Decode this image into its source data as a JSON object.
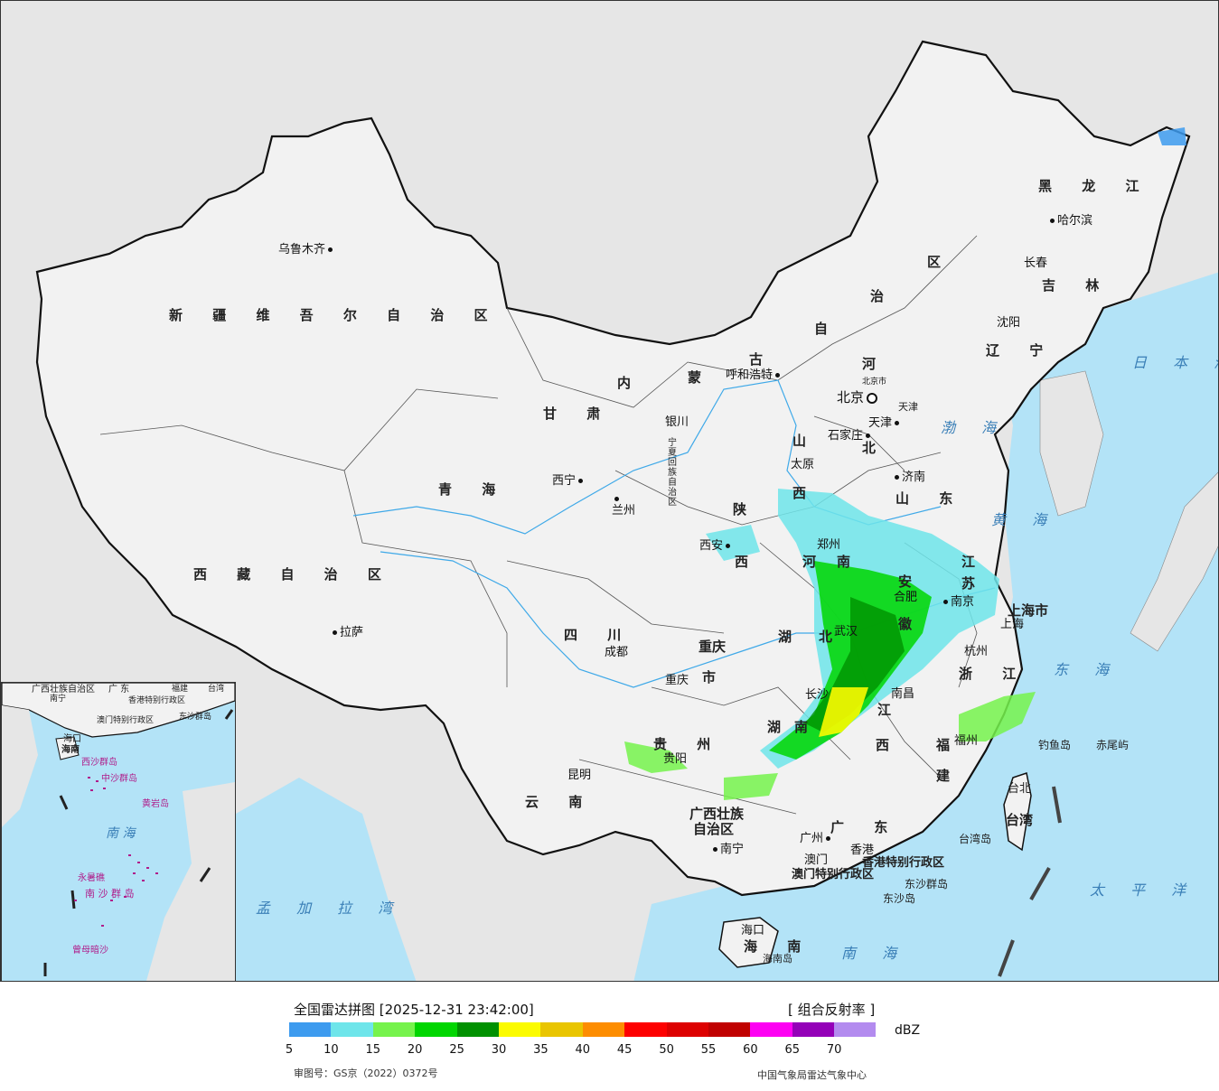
{
  "colors": {
    "ocean": "#b3e3f7",
    "land_china": "#f2f2f2",
    "land_other": "#e6e6e6",
    "border": "#111111",
    "river": "#3fa9e8",
    "sea_label": "#3a7fb7",
    "islands": "#b01c8a"
  },
  "map": {
    "provinces": [
      "新 疆 维 吾 尔 自 治 区",
      "西 藏 自 治 区",
      "青 海",
      "甘 肃",
      "四 川",
      "云 南",
      "黑 龙 江",
      "吉 林",
      "辽 宁",
      "内",
      "蒙",
      "古",
      "自",
      "治",
      "区",
      "河",
      "北",
      "山",
      "西",
      "山 东",
      "河",
      "南",
      "陕",
      "西",
      "湖",
      "北",
      "湖",
      "南",
      "江",
      "西",
      "安",
      "徽",
      "江",
      "苏",
      "浙 江",
      "福",
      "建",
      "贵 州",
      "广 东",
      "海 南",
      "广西壮族",
      "自治区",
      "重庆",
      "市",
      "宁夏回族自治区",
      "台北",
      "台湾",
      "上海市",
      "天津"
    ],
    "cities": [
      "乌鲁木齐",
      "拉萨",
      "西宁",
      "兰州",
      "银川",
      "呼和浩特",
      "北京",
      "北京市",
      "天津",
      "石家庄",
      "太原",
      "济南",
      "郑州",
      "西安",
      "成都",
      "重庆",
      "武汉",
      "合肥",
      "南京",
      "上海",
      "杭州",
      "长沙",
      "南昌",
      "福州",
      "贵阳",
      "昆明",
      "南宁",
      "广州",
      "香港",
      "澳门",
      "海口",
      "哈尔滨",
      "长春",
      "沈阳",
      "台北"
    ],
    "special": [
      "香港特别行政区",
      "澳门特别行政区",
      "东沙群岛",
      "东沙岛",
      "钓鱼岛",
      "赤尾屿",
      "台湾岛",
      "海南岛"
    ],
    "seas": [
      "日 本 海",
      "渤 海",
      "黄 海",
      "东 海",
      "太 平 洋",
      "南 海",
      "孟 加 拉 湾"
    ],
    "inset": {
      "labels": [
        "广西壮族自治区",
        "广 东",
        "福建",
        "台湾",
        "南宁",
        "香港特别行政区",
        "澳门特别行政区",
        "东沙群岛",
        "海口",
        "海南",
        "西沙群岛",
        "中沙群岛",
        "黄岩岛",
        "南 海",
        "永暑礁",
        "南 沙 群 岛",
        "曾母暗沙"
      ]
    }
  },
  "legend": {
    "title": "全国雷达拼图 [2025-12-31 23:42:00]",
    "product": "[ 组合反射率 ]",
    "unit": "dBZ",
    "scale": [
      {
        "value": "5",
        "color": "#3d9bef"
      },
      {
        "value": "10",
        "color": "#6ee5ea"
      },
      {
        "value": "15",
        "color": "#76f34c"
      },
      {
        "value": "20",
        "color": "#00d600"
      },
      {
        "value": "25",
        "color": "#009100"
      },
      {
        "value": "30",
        "color": "#fbfb00"
      },
      {
        "value": "35",
        "color": "#e9c500"
      },
      {
        "value": "40",
        "color": "#fd8d00"
      },
      {
        "value": "45",
        "color": "#fd0000"
      },
      {
        "value": "50",
        "color": "#dd0000"
      },
      {
        "value": "55",
        "color": "#c00000"
      },
      {
        "value": "60",
        "color": "#fd00f3"
      },
      {
        "value": "65",
        "color": "#9400b8"
      },
      {
        "value": "70",
        "color": "#b38bef"
      }
    ],
    "approval": "审图号：GS京（2022）0372号",
    "agency": "中国气象局雷达气象中心"
  }
}
